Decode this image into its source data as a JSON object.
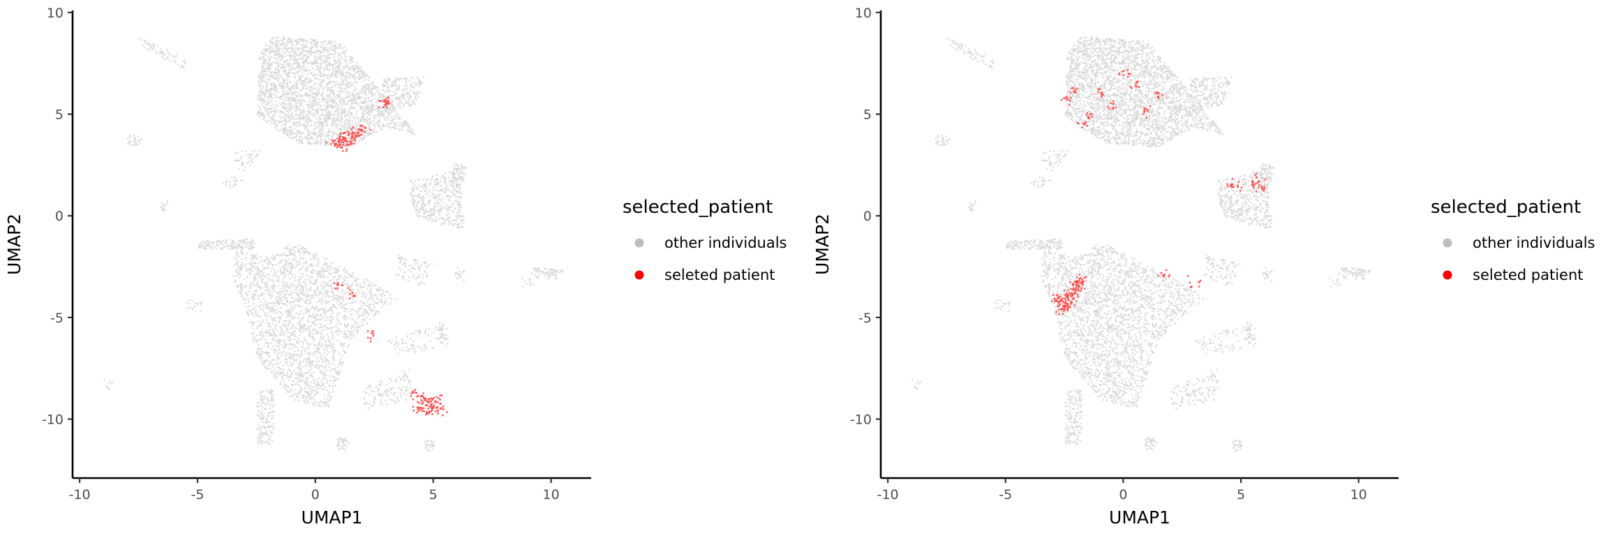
{
  "chart_data": [
    {
      "type": "scatter",
      "xlabel": "UMAP1",
      "ylabel": "UMAP2",
      "xlim": [
        -10.3,
        11.7
      ],
      "ylim": [
        -12.9,
        10.1
      ],
      "xticks": [
        -10,
        -5,
        0,
        5,
        10
      ],
      "yticks": [
        -10,
        -5,
        0,
        5,
        10
      ],
      "xtick_labels": [
        "-10",
        "-5",
        "0",
        "5",
        "10"
      ],
      "ytick_labels": [
        "-10",
        "-5",
        "0",
        "5",
        "10"
      ],
      "grid": false,
      "legend": {
        "title": "selected_patient",
        "placement": "right",
        "entries": [
          {
            "label": "other individuals",
            "color": "#bebebe"
          },
          {
            "label": "seleted patient",
            "color": "#ff0000"
          }
        ]
      },
      "series": [
        {
          "key": "other individuals",
          "color": "#d9d9d9"
        },
        {
          "key": "seleted patient",
          "color": "#ff4d4d",
          "points": [
            [
              1.0,
              3.6
            ],
            [
              1.3,
              3.8
            ],
            [
              1.6,
              4.0
            ],
            [
              1.9,
              4.2
            ],
            [
              1.1,
              3.9
            ],
            [
              1.5,
              3.7
            ],
            [
              0.8,
              3.5
            ],
            [
              2.0,
              4.3
            ],
            [
              1.2,
              3.4
            ],
            [
              1.7,
              4.1
            ],
            [
              1.4,
              4.0
            ],
            [
              0.9,
              3.8
            ],
            [
              2.9,
              5.5
            ],
            [
              3.0,
              5.7
            ],
            [
              2.95,
              5.6
            ],
            [
              4.2,
              -8.7
            ],
            [
              4.6,
              -9.0
            ],
            [
              5.0,
              -9.2
            ],
            [
              5.2,
              -9.3
            ],
            [
              4.8,
              -9.1
            ],
            [
              4.4,
              -9.5
            ],
            [
              5.3,
              -9.6
            ],
            [
              4.9,
              -9.4
            ],
            [
              4.5,
              -8.9
            ],
            [
              5.1,
              -9.0
            ],
            [
              4.3,
              -9.3
            ],
            [
              4.7,
              -9.6
            ],
            [
              2.3,
              -5.8
            ],
            [
              1.5,
              -3.8
            ],
            [
              0.9,
              -3.4
            ]
          ]
        }
      ]
    },
    {
      "type": "scatter",
      "xlabel": "UMAP1",
      "ylabel": "UMAP2",
      "xlim": [
        -10.3,
        11.7
      ],
      "ylim": [
        -12.9,
        10.1
      ],
      "xticks": [
        -10,
        -5,
        0,
        5,
        10
      ],
      "yticks": [
        -10,
        -5,
        0,
        5,
        10
      ],
      "xtick_labels": [
        "-10",
        "-5",
        "0",
        "5",
        "10"
      ],
      "ytick_labels": [
        "-10",
        "-5",
        "0",
        "5",
        "10"
      ],
      "grid": false,
      "legend": {
        "title": "selected_patient",
        "placement": "right",
        "entries": [
          {
            "label": "other individuals",
            "color": "#bebebe"
          },
          {
            "label": "seleted patient",
            "color": "#ff0000"
          }
        ]
      },
      "series": [
        {
          "key": "other individuals",
          "color": "#d9d9d9"
        },
        {
          "key": "seleted patient",
          "color": "#ff4d4d",
          "points": [
            [
              -2.7,
              -4.6
            ],
            [
              -2.5,
              -4.2
            ],
            [
              -2.4,
              -4.0
            ],
            [
              -2.2,
              -3.7
            ],
            [
              -2.0,
              -3.4
            ],
            [
              -1.9,
              -3.1
            ],
            [
              -2.6,
              -4.4
            ],
            [
              -2.3,
              -3.8
            ],
            [
              -2.1,
              -3.5
            ],
            [
              -1.8,
              -3.0
            ],
            [
              -2.8,
              -4.1
            ],
            [
              -2.5,
              -4.5
            ],
            [
              -2.9,
              -4.0
            ],
            [
              -2.35,
              -4.3
            ],
            [
              -2.05,
              -3.3
            ],
            [
              -2.2,
              -4.0
            ],
            [
              -2.2,
              6.2
            ],
            [
              -1.5,
              5.0
            ],
            [
              -1.0,
              6.0
            ],
            [
              -0.5,
              5.5
            ],
            [
              0.5,
              6.5
            ],
            [
              1.5,
              6.0
            ],
            [
              -1.8,
              4.5
            ],
            [
              0.0,
              7.0
            ],
            [
              -2.4,
              5.8
            ],
            [
              1.0,
              5.2
            ],
            [
              4.6,
              1.5
            ],
            [
              5.6,
              1.6
            ],
            [
              5.9,
              1.4
            ],
            [
              4.8,
              1.5
            ],
            [
              5.7,
              1.8
            ],
            [
              1.7,
              -2.9
            ],
            [
              3.0,
              -3.3
            ]
          ]
        }
      ]
    }
  ]
}
